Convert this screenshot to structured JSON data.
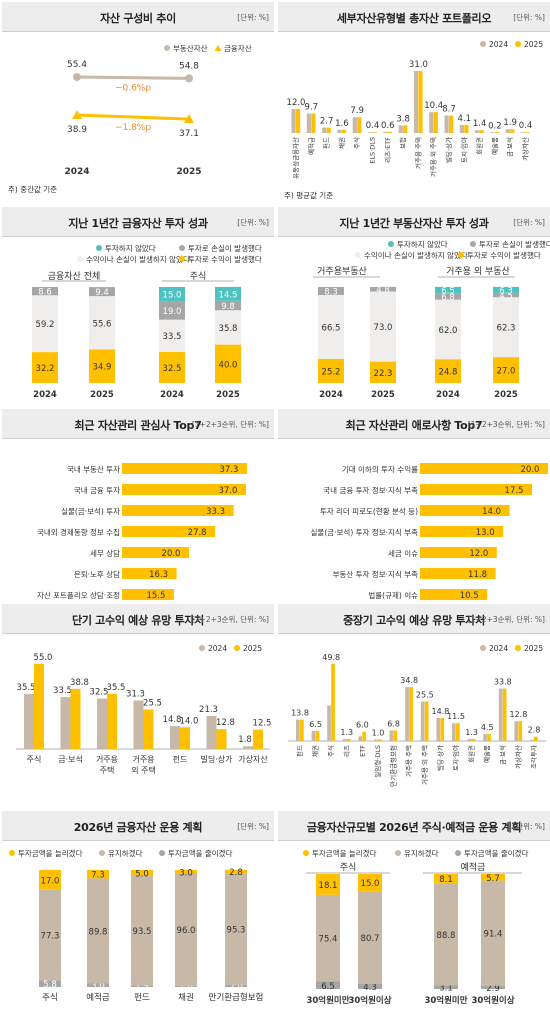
{
  "colors": {
    "beige": "#c7b8a8",
    "gold": "#ffc000",
    "light": "#efeeec",
    "gray": "#a6a6a6",
    "teal": "#4fc1c1",
    "orange": "#f08c28",
    "dark": "#333333"
  },
  "panels": {
    "p1": {
      "title": "자산 구성비 추이",
      "unit": "[단위: %]",
      "note": "주) 중간값 기준"
    },
    "p2": {
      "title": "세부자산유형별 총자산 포트폴리오",
      "unit": "[단위: %]",
      "note": "주) 평균값 기준"
    },
    "p3": {
      "title": "지난 1년간 금융자산 투자 성과",
      "unit": "[단위: %]"
    },
    "p4": {
      "title": "지난 1년간 부동산자산 투자 성과",
      "unit": "[단위: %]"
    },
    "p5": {
      "title": "최근 자산관리 관심사 Top7",
      "unit": "[1+2+3순위, 단위: %]"
    },
    "p6": {
      "title": "최근 자산관리 애로사항 Top7",
      "unit": "[1+2+3순위, 단위: %]"
    },
    "p7": {
      "title": "단기 고수익 예상 유망 투자처",
      "unit": "[1+2+3순위, 단위: %]"
    },
    "p8": {
      "title": "중장기 고수익 예상 유망 투자처",
      "unit": "[1+2+3순위, 단위: %]"
    },
    "p9": {
      "title": "2026년 금융자산 운용 계획",
      "unit": "[단위: %]"
    },
    "p10": {
      "title": "금융자산규모별 2026년 주식·예적금 운용 계획",
      "unit": "[단위: %]"
    }
  },
  "chart_data": [
    {
      "id": "c1",
      "type": "line",
      "x": [
        "2024",
        "2025"
      ],
      "series": [
        {
          "name": "부동산자산",
          "values": [
            55.4,
            54.8
          ],
          "change": "−0.6%p"
        },
        {
          "name": "금융자산",
          "values": [
            38.9,
            37.1
          ],
          "change": "−1.8%p"
        }
      ]
    },
    {
      "id": "c2",
      "type": "bar",
      "categories": [
        "유동성금융자산",
        "예적금",
        "펀드",
        "채권",
        "주식",
        "ELS·DLS",
        "리츠·ETF",
        "보험",
        "거주용 주택",
        "거주용 외 주택",
        "빌딩·상가",
        "토지·임야",
        "회원권",
        "예술품",
        "금·보석",
        "가상자산"
      ],
      "series": [
        {
          "name": "2024",
          "values": [
            12.0,
            9.7,
            2.7,
            1.6,
            7.9,
            0.4,
            0.6,
            3.8,
            31.0,
            10.4,
            8.7,
            4.1,
            1.4,
            0.2,
            1.9,
            0.4
          ]
        },
        {
          "name": "2025",
          "values": [
            12.0,
            9.7,
            2.7,
            1.6,
            7.9,
            0.4,
            0.6,
            3.8,
            31.0,
            10.4,
            8.7,
            4.1,
            1.4,
            0.2,
            1.9,
            0.4
          ]
        }
      ]
    },
    {
      "id": "c3",
      "type": "bar",
      "legend": [
        "투자하지 않았다",
        "투자로 손실이 발생했다",
        "수익이나 손실이 발생하지 않았다",
        "투자로 수익이 발생했다"
      ],
      "groups": [
        {
          "label": "금융자산 전체",
          "bars": [
            {
              "x": "2024",
              "segments": [
                32.2,
                59.2,
                8.6
              ]
            },
            {
              "x": "2025",
              "segments": [
                34.9,
                55.6,
                9.4
              ]
            }
          ]
        },
        {
          "label": "주식",
          "bars": [
            {
              "x": "2024",
              "segments": [
                32.5,
                33.5,
                19.0,
                15.0
              ]
            },
            {
              "x": "2025",
              "segments": [
                40.0,
                35.8,
                9.8,
                14.5
              ]
            }
          ]
        }
      ]
    },
    {
      "id": "c4",
      "type": "bar",
      "legend": [
        "투자하지 않았다",
        "투자로 손실이 발생했다",
        "수익이나 손실이 발생하지 않았다",
        "투자로 수익이 발생했다"
      ],
      "groups": [
        {
          "label": "거주용부동산",
          "bars": [
            {
              "x": "2024",
              "segments": [
                25.2,
                66.5,
                8.3
              ]
            },
            {
              "x": "2025",
              "segments": [
                22.3,
                73.0,
                4.8
              ]
            }
          ]
        },
        {
          "label": "거주용 외 부동산",
          "bars": [
            {
              "x": "2024",
              "segments": [
                24.8,
                62.0,
                6.8,
                6.5
              ]
            },
            {
              "x": "2025",
              "segments": [
                27.0,
                62.3,
                4.5,
                6.3
              ]
            }
          ]
        }
      ]
    },
    {
      "id": "c5",
      "type": "bar",
      "categories": [
        "국내 부동산 투자",
        "국내 금융 투자",
        "실물(금·보석) 투자",
        "국내외 경제동향 정보 수집",
        "세무 상담",
        "은퇴·노후 상담",
        "자산 포트폴리오 상담·조정"
      ],
      "values": [
        37.3,
        37.0,
        33.3,
        27.8,
        20.0,
        16.3,
        15.5
      ]
    },
    {
      "id": "c6",
      "type": "bar",
      "categories": [
        "기대 이하의 투자 수익률",
        "국내 금융 투자 정보·지식 부족",
        "투자 리더 피로도(현황 분석 등)",
        "실물(금·보석) 투자 정보·지식 부족",
        "세금 이슈",
        "부동산 투자 정보·지식 부족",
        "법률(규제) 이슈"
      ],
      "values": [
        20.0,
        17.5,
        14.0,
        13.0,
        12.0,
        11.8,
        10.5
      ]
    },
    {
      "id": "c7",
      "type": "bar",
      "categories": [
        "주식",
        "금·보석",
        "거주용 주택",
        "거주용 외 주택",
        "펀드",
        "빌딩·상가",
        "가상자산"
      ],
      "series": [
        {
          "name": "2024",
          "values": [
            35.5,
            33.5,
            32.5,
            31.3,
            14.8,
            21.3,
            1.8
          ]
        },
        {
          "name": "2025",
          "values": [
            55.0,
            38.8,
            35.5,
            25.5,
            14.0,
            12.8,
            12.5
          ]
        }
      ]
    },
    {
      "id": "c8",
      "type": "bar",
      "categories": [
        "펀드",
        "채권",
        "주식",
        "리츠",
        "ETF",
        "일임형·DLS",
        "만기환급형보험",
        "거주용 주택",
        "거주용 외 주택",
        "빌딩·상가",
        "토지·임야",
        "회원권",
        "예술품",
        "금·보석",
        "가상자산",
        "조각투자"
      ],
      "series": [
        {
          "name": "2024",
          "values": [
            13.8,
            6.5,
            23.0,
            1.3,
            3.0,
            1.0,
            6.8,
            34.8,
            25.5,
            14.8,
            11.5,
            1.3,
            4.5,
            33.8,
            12.8,
            0.8
          ]
        },
        {
          "name": "2025",
          "values": [
            13.8,
            6.5,
            49.8,
            1.3,
            6.0,
            1.0,
            6.8,
            34.8,
            25.5,
            14.8,
            11.5,
            1.3,
            4.5,
            33.8,
            12.8,
            2.8
          ]
        }
      ]
    },
    {
      "id": "c9",
      "type": "bar",
      "legend": [
        "투자금액을 늘리겠다",
        "유지하겠다",
        "투자금액을 줄이겠다"
      ],
      "categories": [
        "주식",
        "예적금",
        "펀드",
        "채권",
        "만기환급형보험"
      ],
      "segments": [
        [
          5.8,
          77.3,
          17.0
        ],
        [
          3.0,
          89.8,
          7.3
        ],
        [
          1.5,
          93.5,
          5.0
        ],
        [
          1.0,
          96.0,
          3.0
        ],
        [
          2.0,
          95.3,
          2.8
        ]
      ]
    },
    {
      "id": "c10",
      "type": "bar",
      "legend": [
        "투자금액을 늘리겠다",
        "유지하겠다",
        "투자금액을 줄이겠다"
      ],
      "groups": [
        {
          "label": "주식",
          "bars": [
            {
              "x": "30억원미만",
              "segments": [
                6.5,
                75.4,
                18.1
              ]
            },
            {
              "x": "30억원이상",
              "segments": [
                4.3,
                80.7,
                15.0
              ]
            }
          ]
        },
        {
          "label": "예적금",
          "bars": [
            {
              "x": "30억원미만",
              "segments": [
                3.1,
                88.8,
                8.1
              ]
            },
            {
              "x": "30억원이상",
              "segments": [
                2.9,
                91.4,
                5.7
              ]
            }
          ]
        }
      ]
    }
  ]
}
